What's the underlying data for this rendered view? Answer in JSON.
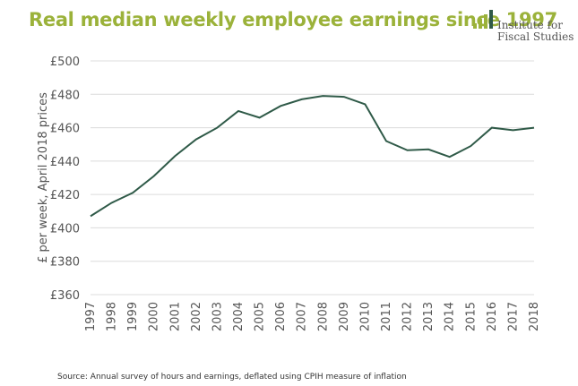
{
  "header": {
    "title": "Real median weekly employee earnings since 1997",
    "logo_line1": "Institute for",
    "logo_line2": "Fiscal Studies",
    "logo_bar_color": "#9bb23a"
  },
  "footer": {
    "source": "Source: Annual survey of hours and earnings, deflated using CPIH measure of inflation"
  },
  "chart_data": {
    "type": "line",
    "title": "Real median weekly employee earnings since 1997",
    "xlabel": "",
    "ylabel": "£ per week, April 2018 prices",
    "ylim": [
      360,
      500
    ],
    "yticks": [
      360,
      380,
      400,
      420,
      440,
      460,
      480,
      500
    ],
    "ytick_labels": [
      "£360",
      "£380",
      "£400",
      "£420",
      "£440",
      "£460",
      "£480",
      "£500"
    ],
    "categories": [
      "1997",
      "1998",
      "1999",
      "2000",
      "2001",
      "2002",
      "2003",
      "2004",
      "2005",
      "2006",
      "2007",
      "2008",
      "2009",
      "2010",
      "2011",
      "2012",
      "2013",
      "2014",
      "2015",
      "2016",
      "2017",
      "2018"
    ],
    "grid": true,
    "line_color": "#2f5a48",
    "series": [
      {
        "values": [
          407,
          415,
          421,
          431,
          443,
          453,
          460,
          470,
          466,
          473,
          477,
          479,
          478.5,
          474,
          452,
          446.5,
          447,
          442.5,
          449,
          460,
          458.5,
          460
        ]
      }
    ]
  }
}
